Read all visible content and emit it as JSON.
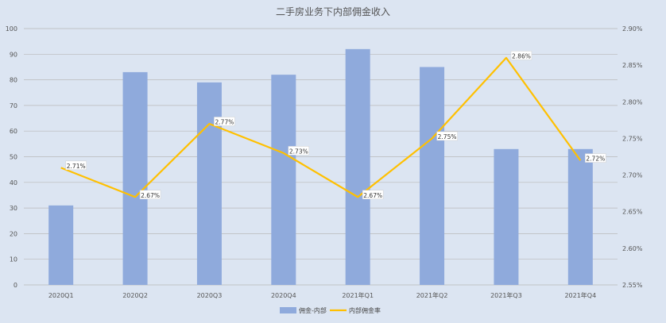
{
  "chart_data": {
    "type": "bar",
    "title": "二手房业务下内部佣金收入",
    "categories": [
      "2020Q1",
      "2020Q2",
      "2020Q3",
      "2020Q4",
      "2021年Q1",
      "2021年Q2",
      "2021年Q3",
      "2021年Q4"
    ],
    "series": [
      {
        "name": "佣金-内部",
        "type": "bar",
        "axis": "left",
        "color": "#8faadc",
        "values": [
          31,
          83,
          79,
          82,
          92,
          85,
          53,
          53
        ]
      },
      {
        "name": "内部佣金率",
        "type": "line",
        "axis": "right",
        "color": "#ffc000",
        "values": [
          2.71,
          2.67,
          2.77,
          2.73,
          2.67,
          2.75,
          2.86,
          2.72
        ],
        "labels": [
          "2.71%",
          "2.67%",
          "2.77%",
          "2.73%",
          "2.67%",
          "2.75%",
          "2.86%",
          "2.72%"
        ]
      }
    ],
    "ylim": [
      0,
      100
    ],
    "yticks": [
      "0",
      "10",
      "20",
      "30",
      "40",
      "50",
      "60",
      "70",
      "80",
      "90",
      "100"
    ],
    "y2lim": [
      2.55,
      2.9
    ],
    "y2ticks": [
      "2.55%",
      "2.60%",
      "2.65%",
      "2.70%",
      "2.75%",
      "2.80%",
      "2.85%",
      "2.90%"
    ],
    "grid": true,
    "legend_position": "bottom"
  }
}
